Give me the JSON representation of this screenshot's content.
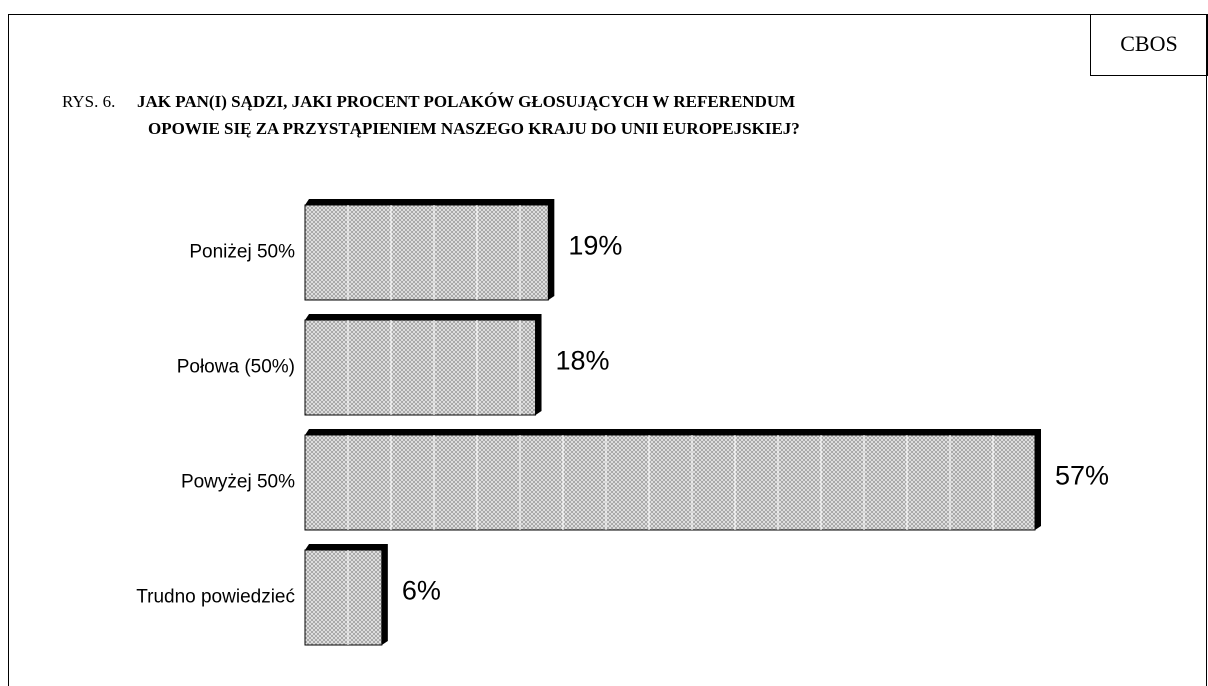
{
  "source": "CBOS",
  "chart_data": {
    "type": "bar",
    "orientation": "horizontal",
    "figure_label": "RYS. 6.",
    "title": [
      "JAK PAN(I) SĄDZI, JAKI PROCENT POLAKÓW GŁOSUJĄCYCH W REFERENDUM",
      "OPOWIE SIĘ ZA PRZYSTĄPIENIEM NASZEGO KRAJU DO UNII EUROPEJSKIEJ?"
    ],
    "categories": [
      "Poniżej 50%",
      "Połowa (50%)",
      "Powyżej 50%",
      "Trudno powiedzieć"
    ],
    "values": [
      19,
      18,
      57,
      6
    ],
    "value_labels": [
      "19%",
      "18%",
      "57%",
      "6%"
    ],
    "color": "#c8c8c8"
  }
}
